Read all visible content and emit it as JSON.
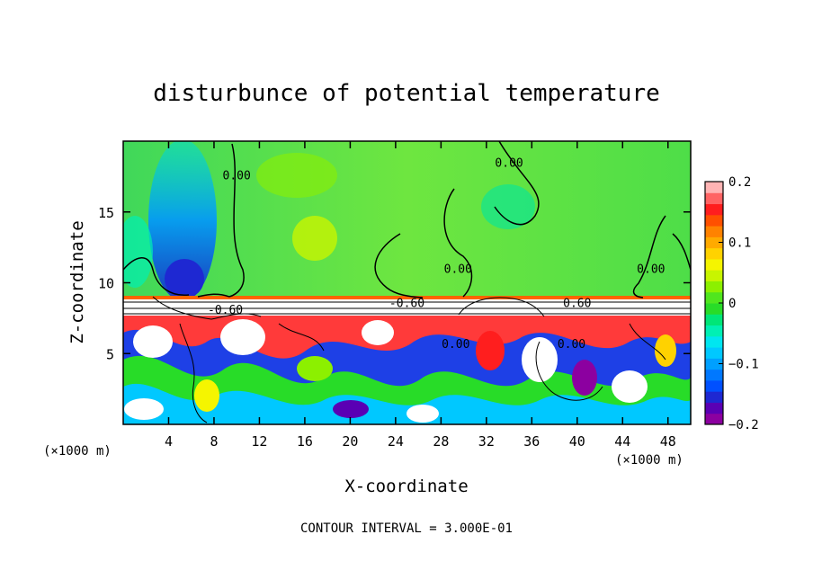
{
  "chart_data": {
    "type": "heatmap",
    "title": "disturbunce of potential temperature",
    "xlabel": "X-coordinate",
    "ylabel": "Z-coordinate",
    "x_unit_left": "(×1000 m)",
    "x_unit_right": "(×1000 m)",
    "xlim": [
      0,
      50
    ],
    "ylim": [
      0,
      20
    ],
    "xticks": [
      {
        "value": 4,
        "label": "4"
      },
      {
        "value": 8,
        "label": "8"
      },
      {
        "value": 12,
        "label": "12"
      },
      {
        "value": 16,
        "label": "16"
      },
      {
        "value": 20,
        "label": "20"
      },
      {
        "value": 24,
        "label": "24"
      },
      {
        "value": 28,
        "label": "28"
      },
      {
        "value": 32,
        "label": "32"
      },
      {
        "value": 36,
        "label": "36"
      },
      {
        "value": 40,
        "label": "40"
      },
      {
        "value": 44,
        "label": "44"
      },
      {
        "value": 48,
        "label": "48"
      }
    ],
    "yticks": [
      {
        "value": 5,
        "label": "5"
      },
      {
        "value": 10,
        "label": "10"
      },
      {
        "value": 15,
        "label": "15"
      }
    ],
    "colorbar": {
      "range": [
        -0.2,
        0.2
      ],
      "ticks": [
        {
          "value": 0.2,
          "label": "0.2"
        },
        {
          "value": 0.1,
          "label": "0.1"
        },
        {
          "value": 0,
          "label": "0"
        },
        {
          "value": -0.1,
          "label": "−0.1"
        },
        {
          "value": -0.2,
          "label": "−0.2"
        }
      ],
      "colors": [
        "#8c00a0",
        "#5a00b4",
        "#1e28d2",
        "#0050ff",
        "#0078ff",
        "#00a0ff",
        "#00c8ff",
        "#00e6f0",
        "#00f0b4",
        "#00e678",
        "#28dc28",
        "#50e61e",
        "#8cf000",
        "#c8f500",
        "#f5f500",
        "#ffd200",
        "#ffaa00",
        "#ff8200",
        "#ff5000",
        "#ff1e1e",
        "#ff6464",
        "#ffb4b4"
      ]
    },
    "contour_labels": [
      {
        "x": 10,
        "z": 17.3,
        "label": "0.00"
      },
      {
        "x": 34,
        "z": 18.2,
        "label": "0.00"
      },
      {
        "x": 29.5,
        "z": 10.7,
        "label": "0.00"
      },
      {
        "x": 46.5,
        "z": 10.7,
        "label": "0.00"
      },
      {
        "x": 29.3,
        "z": 5.4,
        "label": "0.00"
      },
      {
        "x": 39.5,
        "z": 5.4,
        "label": "0.00"
      },
      {
        "x": 25,
        "z": 8.3,
        "label": "-0.60"
      },
      {
        "x": 40,
        "z": 8.3,
        "label": "0.60"
      },
      {
        "x": 9,
        "z": 7.8,
        "label": "-0.60"
      }
    ],
    "footer": "CONTOUR INTERVAL = 3.000E-01"
  }
}
